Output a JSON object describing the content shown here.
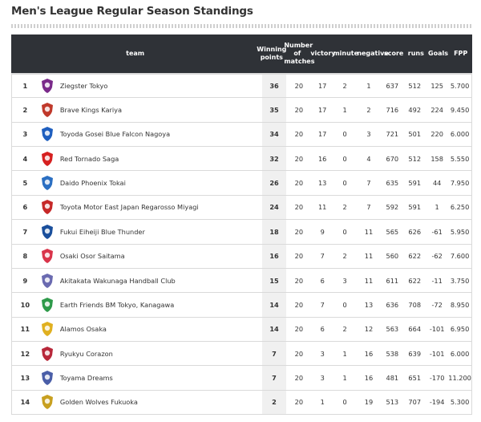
{
  "page": {
    "title": "Men's League Regular Season Standings"
  },
  "table": {
    "headers": {
      "team": "team",
      "points": "Winning points",
      "matches": "Number of matches",
      "victory": "victory",
      "minute": "minute",
      "negative": "negative",
      "score": "score",
      "runs": "runs",
      "goals": "Goals",
      "fpp": "FPP"
    },
    "rows": [
      {
        "rank": "1",
        "team": "Ziegster Tokyo",
        "pts": "36",
        "matches": "20",
        "victory": "17",
        "minute": "2",
        "negative": "1",
        "score": "637",
        "runs": "512",
        "goals": "125",
        "fpp": "5.700",
        "logo_color": "#7a2a8a",
        "logo_icon": "ziegster-logo"
      },
      {
        "rank": "2",
        "team": "Brave Kings Kariya",
        "pts": "35",
        "matches": "20",
        "victory": "17",
        "minute": "1",
        "negative": "2",
        "score": "716",
        "runs": "492",
        "goals": "224",
        "fpp": "9.450",
        "logo_color": "#c0392b",
        "logo_icon": "brave-kings-logo"
      },
      {
        "rank": "3",
        "team": "Toyoda Gosei Blue Falcon Nagoya",
        "pts": "34",
        "matches": "20",
        "victory": "17",
        "minute": "0",
        "negative": "3",
        "score": "721",
        "runs": "501",
        "goals": "220",
        "fpp": "6.000",
        "logo_color": "#1f5fbf",
        "logo_icon": "blue-falcon-logo"
      },
      {
        "rank": "4",
        "team": "Red Tornado Saga",
        "pts": "32",
        "matches": "20",
        "victory": "16",
        "minute": "0",
        "negative": "4",
        "score": "670",
        "runs": "512",
        "goals": "158",
        "fpp": "5.550",
        "logo_color": "#d62020",
        "logo_icon": "red-tornado-logo"
      },
      {
        "rank": "5",
        "team": "Daido Phoenix Tokai",
        "pts": "26",
        "matches": "20",
        "victory": "13",
        "minute": "0",
        "negative": "7",
        "score": "635",
        "runs": "591",
        "goals": "44",
        "fpp": "7.950",
        "logo_color": "#2b6fc2",
        "logo_icon": "phoenix-logo"
      },
      {
        "rank": "6",
        "team": "Toyota Motor East Japan Regarosso Miyagi",
        "pts": "24",
        "matches": "20",
        "victory": "11",
        "minute": "2",
        "negative": "7",
        "score": "592",
        "runs": "591",
        "goals": "1",
        "fpp": "6.250",
        "logo_color": "#c62828",
        "logo_icon": "regarosso-logo"
      },
      {
        "rank": "7",
        "team": "Fukui Eiheiji Blue Thunder",
        "pts": "18",
        "matches": "20",
        "victory": "9",
        "minute": "0",
        "negative": "11",
        "score": "565",
        "runs": "626",
        "goals": "-61",
        "fpp": "5.950",
        "logo_color": "#1a4f9c",
        "logo_icon": "blue-thunder-logo"
      },
      {
        "rank": "8",
        "team": "Osaki Osor Saitama",
        "pts": "16",
        "matches": "20",
        "victory": "7",
        "minute": "2",
        "negative": "11",
        "score": "560",
        "runs": "622",
        "goals": "-62",
        "fpp": "7.600",
        "logo_color": "#d9344a",
        "logo_icon": "osaki-logo"
      },
      {
        "rank": "9",
        "team": "Akitakata Wakunaga Handball Club",
        "pts": "15",
        "matches": "20",
        "victory": "6",
        "minute": "3",
        "negative": "11",
        "score": "611",
        "runs": "622",
        "goals": "-11",
        "fpp": "3.750",
        "logo_color": "#6a6ab0",
        "logo_icon": "wakunaga-logo"
      },
      {
        "rank": "10",
        "team": "Earth Friends BM Tokyo, Kanagawa",
        "pts": "14",
        "matches": "20",
        "victory": "7",
        "minute": "0",
        "negative": "13",
        "score": "636",
        "runs": "708",
        "goals": "-72",
        "fpp": "8.950",
        "logo_color": "#2e9a4a",
        "logo_icon": "earth-friends-logo"
      },
      {
        "rank": "11",
        "team": "Alamos Osaka",
        "pts": "14",
        "matches": "20",
        "victory": "6",
        "minute": "2",
        "negative": "12",
        "score": "563",
        "runs": "664",
        "goals": "-101",
        "fpp": "6.950",
        "logo_color": "#e0b020",
        "logo_icon": "alamos-logo"
      },
      {
        "rank": "12",
        "team": "Ryukyu Corazon",
        "pts": "7",
        "matches": "20",
        "victory": "3",
        "minute": "1",
        "negative": "16",
        "score": "538",
        "runs": "639",
        "goals": "-101",
        "fpp": "6.000",
        "logo_color": "#b8283a",
        "logo_icon": "corazon-logo"
      },
      {
        "rank": "13",
        "team": "Toyama Dreams",
        "pts": "7",
        "matches": "20",
        "victory": "3",
        "minute": "1",
        "negative": "16",
        "score": "481",
        "runs": "651",
        "goals": "-170",
        "fpp": "11.200",
        "logo_color": "#4a5ea8",
        "logo_icon": "dreams-logo"
      },
      {
        "rank": "14",
        "team": "Golden Wolves Fukuoka",
        "pts": "2",
        "matches": "20",
        "victory": "1",
        "minute": "0",
        "negative": "19",
        "score": "513",
        "runs": "707",
        "goals": "-194",
        "fpp": "5.300",
        "logo_color": "#c8a020",
        "logo_icon": "golden-wolves-logo"
      }
    ]
  }
}
